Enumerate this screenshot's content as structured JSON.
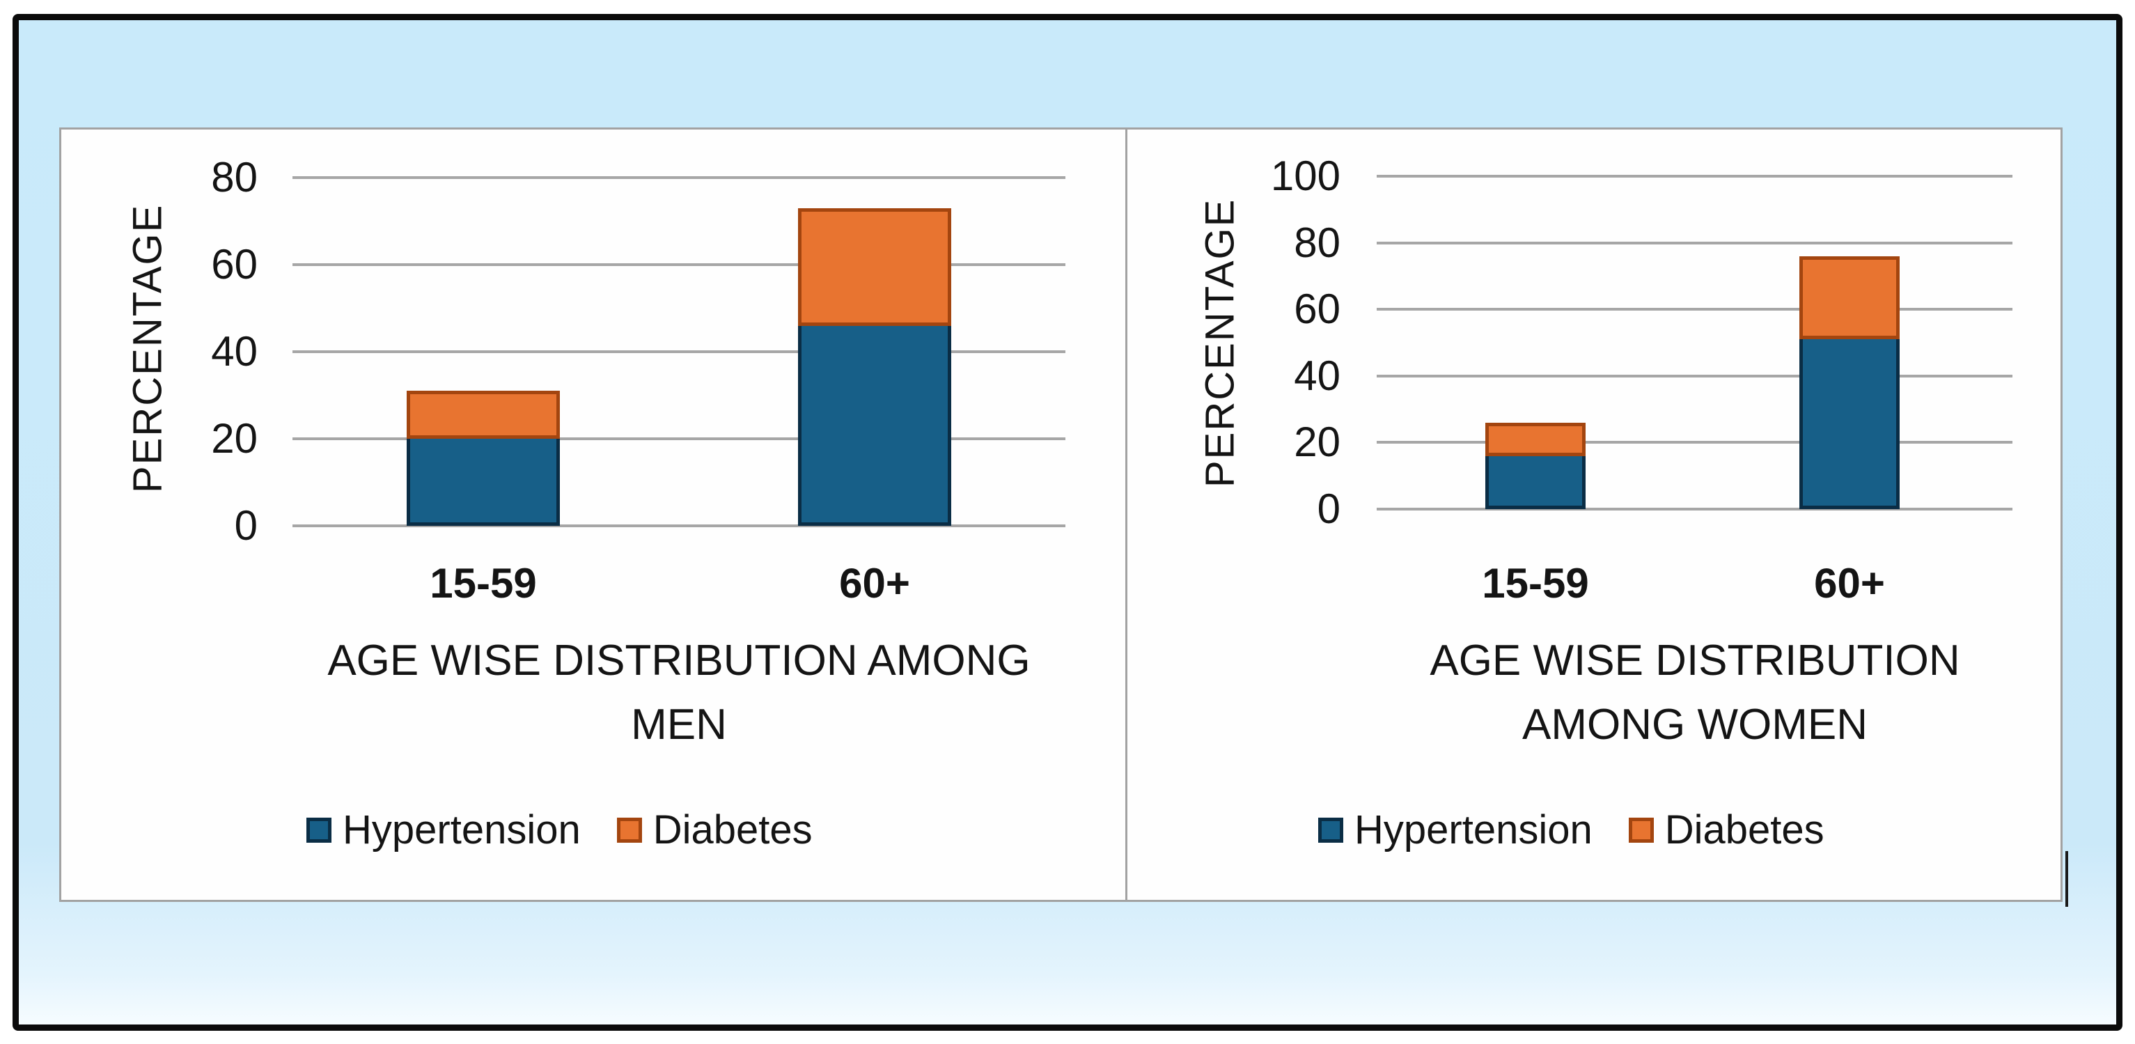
{
  "figure": {
    "outer_border_color": "#0b0b0b",
    "canvas_color": "#c9eafa",
    "panel_color": "#fefefe",
    "panel_border_color": "#a2a2a2",
    "gridline_color": "#a6a6a6",
    "text_color": "#141414"
  },
  "chart_data": [
    {
      "type": "bar",
      "stacked": true,
      "ylabel": "PERCENTAGE",
      "xlabel_lines": [
        "AGE WISE DISTRIBUTION AMONG",
        "MEN"
      ],
      "categories": [
        "15-59",
        "60+"
      ],
      "series": [
        {
          "name": "Hypertension",
          "color": "#175f88",
          "border_color": "#0a2d45",
          "values": [
            20,
            46
          ]
        },
        {
          "name": "Diabetes",
          "color": "#e87430",
          "border_color": "#a3450f",
          "values": [
            11,
            27
          ]
        }
      ],
      "ylim": [
        0,
        80
      ],
      "yticks": [
        80,
        60,
        40,
        20,
        0
      ],
      "grid": true,
      "legend_position": "bottom"
    },
    {
      "type": "bar",
      "stacked": true,
      "ylabel": "PERCENTAGE",
      "xlabel_lines": [
        "AGE WISE DISTRIBUTION",
        "AMONG WOMEN"
      ],
      "categories": [
        "15-59",
        "60+"
      ],
      "series": [
        {
          "name": "Hypertension",
          "color": "#175f88",
          "border_color": "#0a2d45",
          "values": [
            16,
            51
          ]
        },
        {
          "name": "Diabetes",
          "color": "#e87430",
          "border_color": "#a3450f",
          "values": [
            10,
            25
          ]
        }
      ],
      "ylim": [
        0,
        100
      ],
      "yticks": [
        100,
        80,
        60,
        40,
        20,
        0
      ],
      "grid": true,
      "legend_position": "bottom"
    }
  ]
}
